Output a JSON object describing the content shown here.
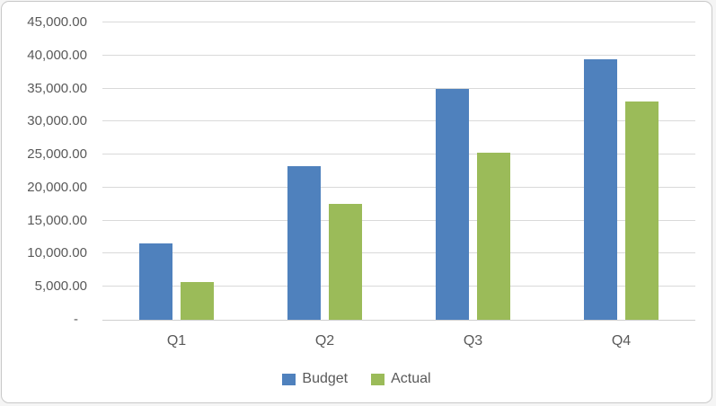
{
  "chart_data": {
    "type": "bar",
    "title": "",
    "xlabel": "",
    "ylabel": "",
    "categories": [
      "Q1",
      "Q2",
      "Q3",
      "Q4"
    ],
    "series": [
      {
        "name": "Budget",
        "color": "#4F81BD",
        "values": [
          11600,
          23300,
          35000,
          39400
        ]
      },
      {
        "name": "Actual",
        "color": "#9BBB59",
        "values": [
          5700,
          17500,
          25300,
          33000
        ]
      }
    ],
    "ylim": [
      0,
      45000
    ],
    "ytick_step": 5000,
    "ytick_labels": [
      "45,000.00",
      "40,000.00",
      "35,000.00",
      "30,000.00",
      "25,000.00",
      "20,000.00",
      "15,000.00",
      "10,000.00",
      "5,000.00",
      "-"
    ],
    "grid": "horizontal",
    "legend_position": "bottom"
  },
  "colors": {
    "gridline": "#D9D9D9",
    "axis_line": "#CFCFCF",
    "tick_text": "#595959",
    "frame_border": "#C9C9C9",
    "background": "#FFFFFF"
  }
}
